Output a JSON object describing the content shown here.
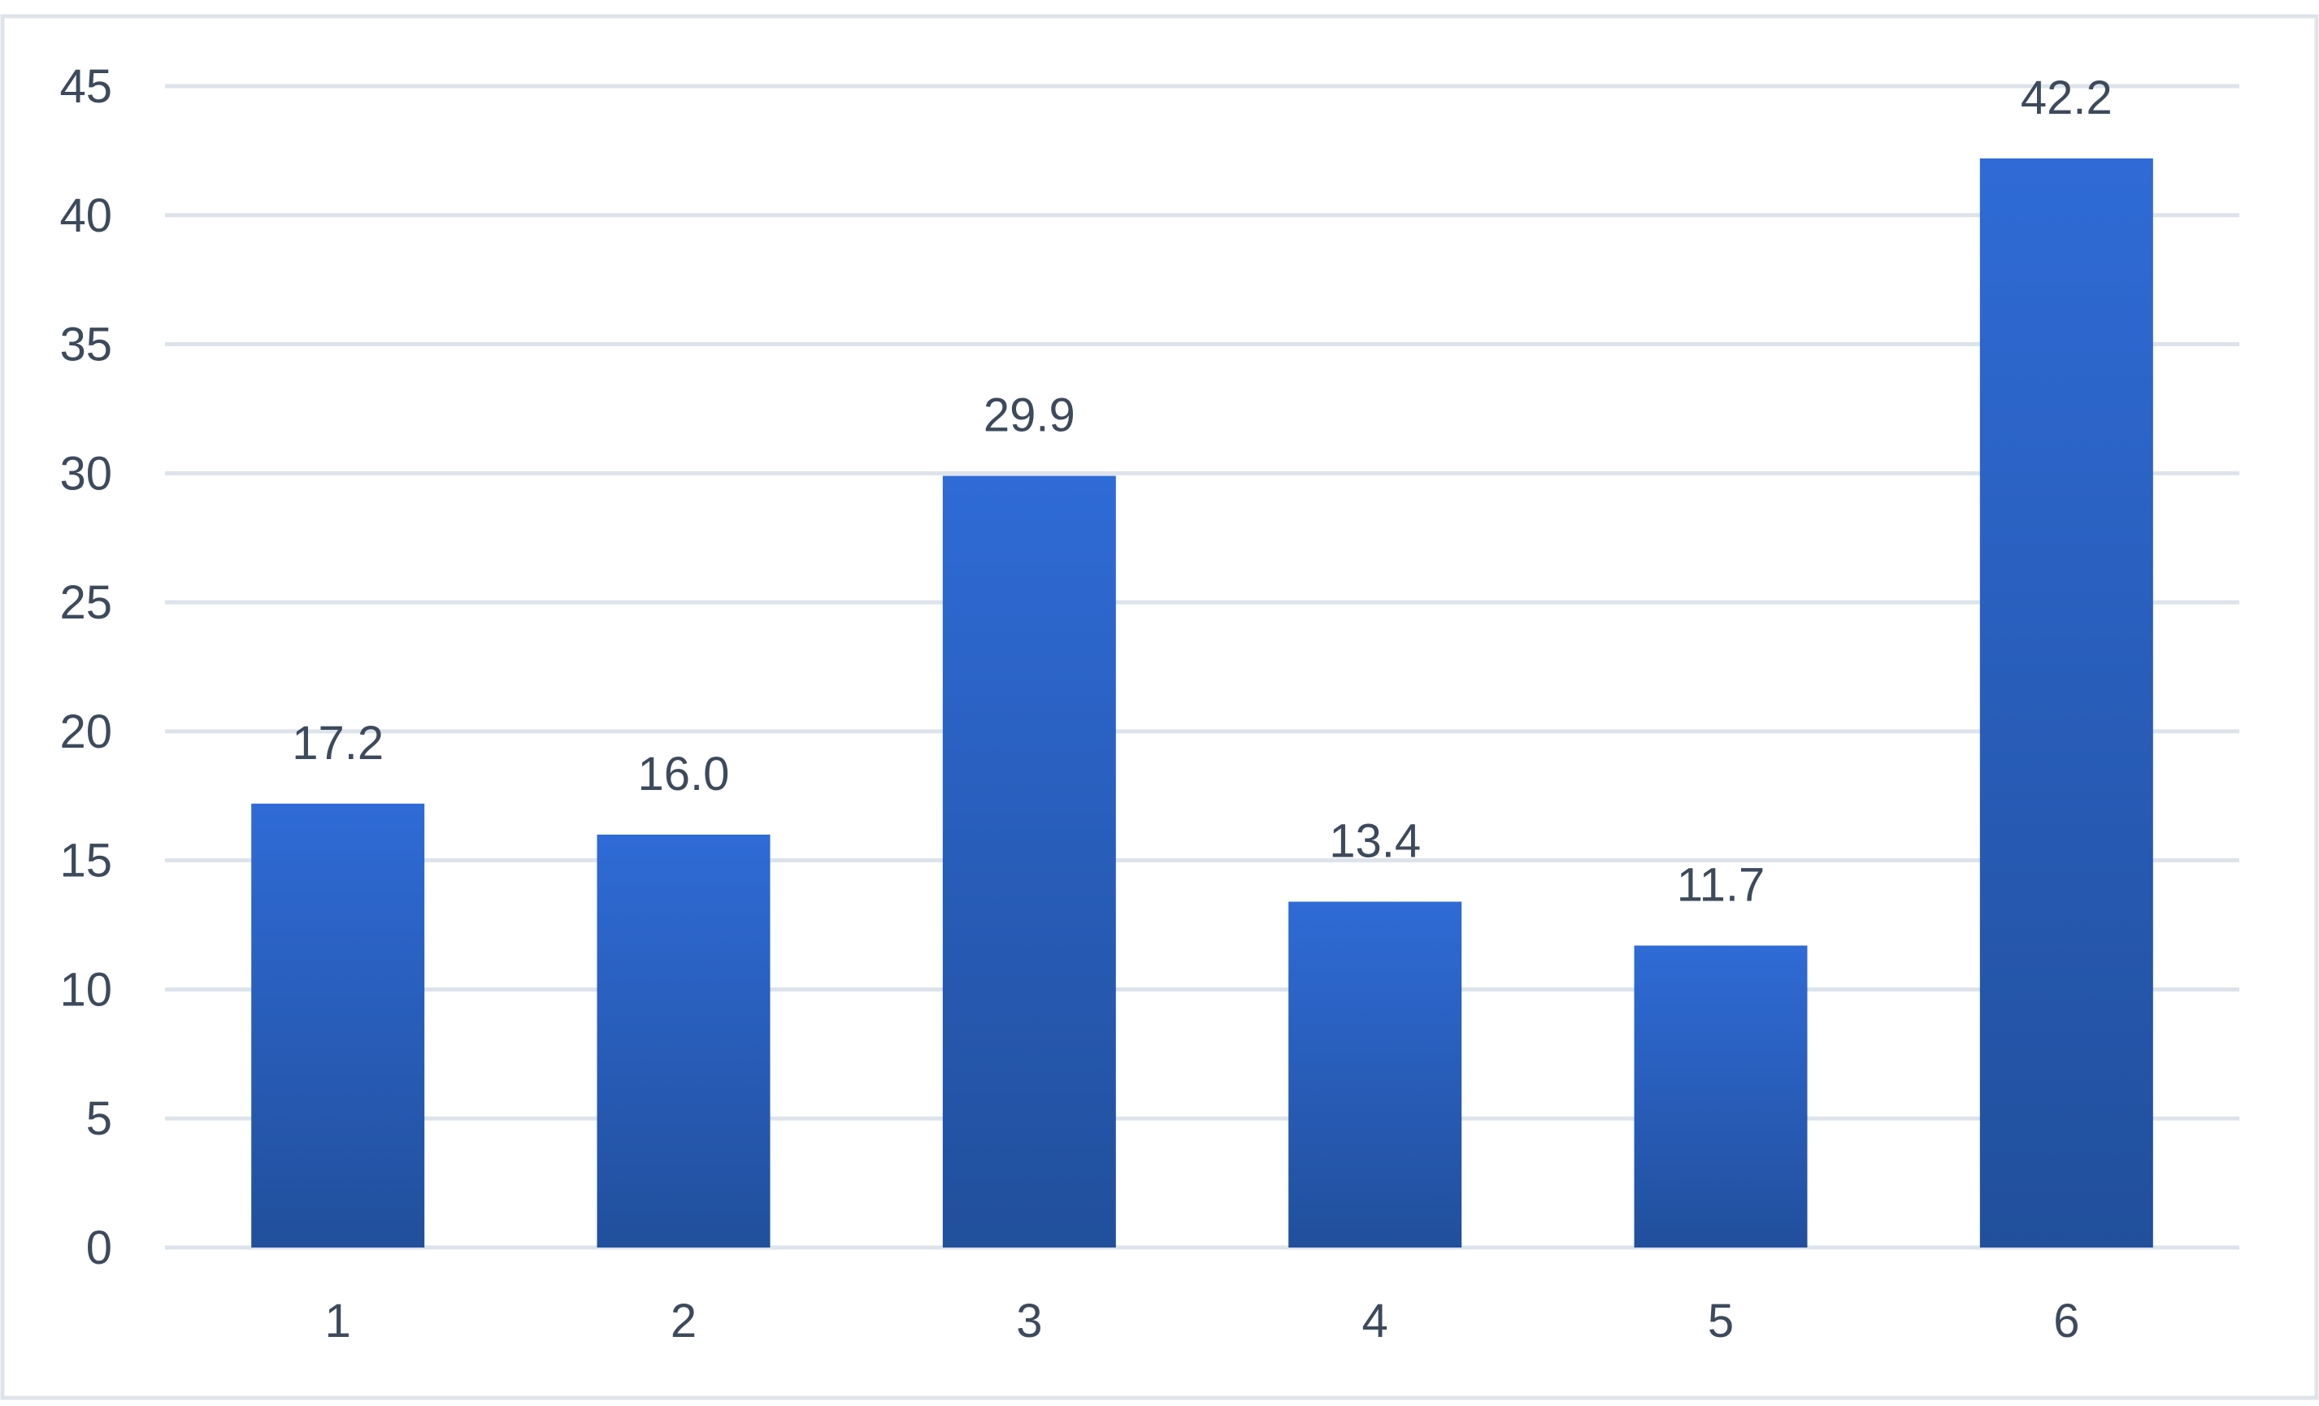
{
  "chart_data": {
    "type": "bar",
    "title": "",
    "xlabel": "",
    "ylabel": "",
    "categories": [
      "1",
      "2",
      "3",
      "4",
      "5",
      "6"
    ],
    "values": [
      17.2,
      16.0,
      29.9,
      13.4,
      11.7,
      42.2
    ],
    "data_labels": [
      "17.2",
      "16.0",
      "29.9",
      "13.4",
      "11.7",
      "42.2"
    ],
    "ylim": [
      0,
      45
    ],
    "yticks": [
      0,
      5,
      10,
      15,
      20,
      25,
      30,
      35,
      40,
      45
    ],
    "grid": true,
    "legend": "none",
    "colors": {
      "bar_top": "#2f6bd6",
      "bar_bottom": "#214f9c",
      "gridline": "#dde3ea",
      "text": "#3d4a5c",
      "frame": "#dfe4ea"
    }
  }
}
